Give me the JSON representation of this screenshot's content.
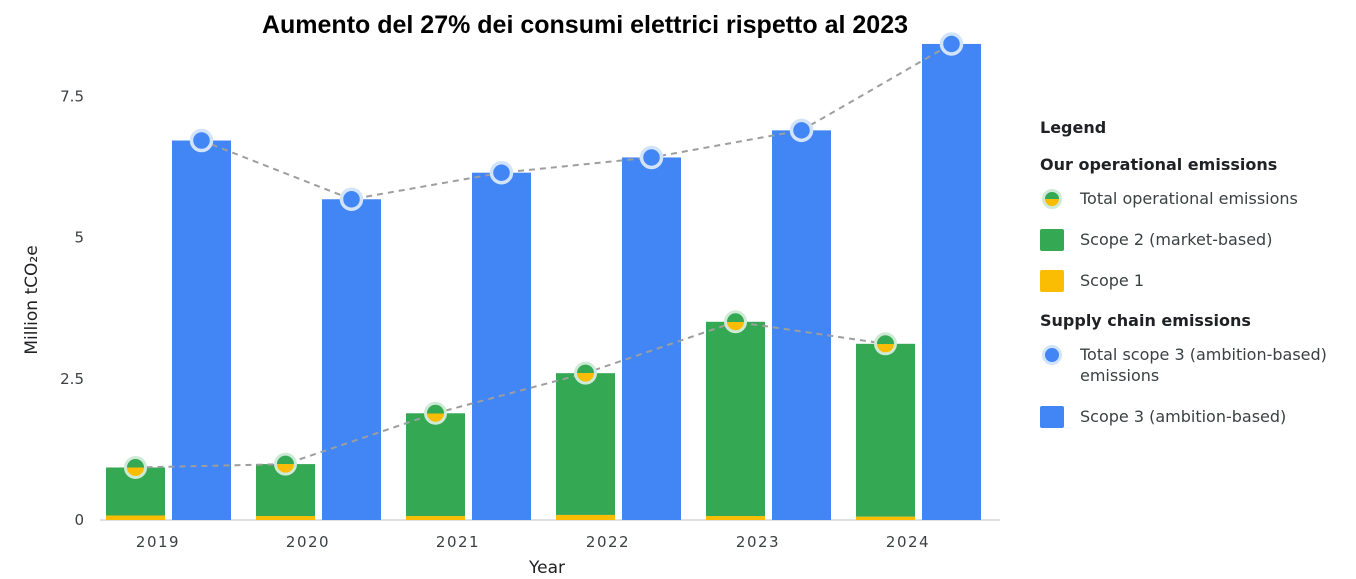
{
  "chart_data": {
    "type": "bar",
    "title": "Aumento del 27% dei consumi elettrici rispetto al 2023",
    "xlabel": "Year",
    "ylabel": "Million tCO₂e",
    "ylim": [
      0,
      8.5
    ],
    "yticks": [
      "0",
      "2.5",
      "5",
      "7.5"
    ],
    "ytick_values": [
      0,
      2.5,
      5,
      7.5
    ],
    "categories": [
      "2019",
      "2020",
      "2021",
      "2022",
      "2023",
      "2024"
    ],
    "stacked_group": {
      "series": [
        {
          "name": "Scope 1",
          "values": [
            0.08,
            0.07,
            0.07,
            0.09,
            0.07,
            0.06
          ],
          "color": "#fbbc04"
        },
        {
          "name": "Scope 2 (market-based)",
          "values": [
            0.85,
            0.92,
            1.82,
            2.51,
            3.44,
            3.06
          ],
          "color": "#34a853"
        }
      ],
      "line": {
        "name": "Total operational emissions",
        "values": [
          0.93,
          0.99,
          1.89,
          2.6,
          3.51,
          3.12
        ]
      }
    },
    "scope3_group": {
      "series": [
        {
          "name": "Scope 3 (ambition-based)",
          "values": [
            6.72,
            5.68,
            6.15,
            6.42,
            6.9,
            8.43
          ],
          "color": "#4285f4"
        }
      ],
      "line": {
        "name": "Total scope 3 (ambition-based) emissions",
        "values": [
          6.72,
          5.68,
          6.15,
          6.42,
          6.9,
          8.43
        ]
      }
    },
    "grid": false,
    "legend_position": "right"
  },
  "legend": {
    "title": "Legend",
    "group_operational": "Our operational emissions",
    "item_total_operational": "Total operational emissions",
    "item_scope2": "Scope 2 (market-based)",
    "item_scope1": "Scope 1",
    "group_supply": "Supply chain emissions",
    "item_total_scope3": "Total scope 3 (ambition-based) emissions",
    "item_scope3": "Scope 3 (ambition-based)"
  },
  "colors": {
    "scope1": "#fbbc04",
    "scope2": "#34a853",
    "scope3": "#4285f4",
    "trend_line": "#9e9e9e"
  }
}
